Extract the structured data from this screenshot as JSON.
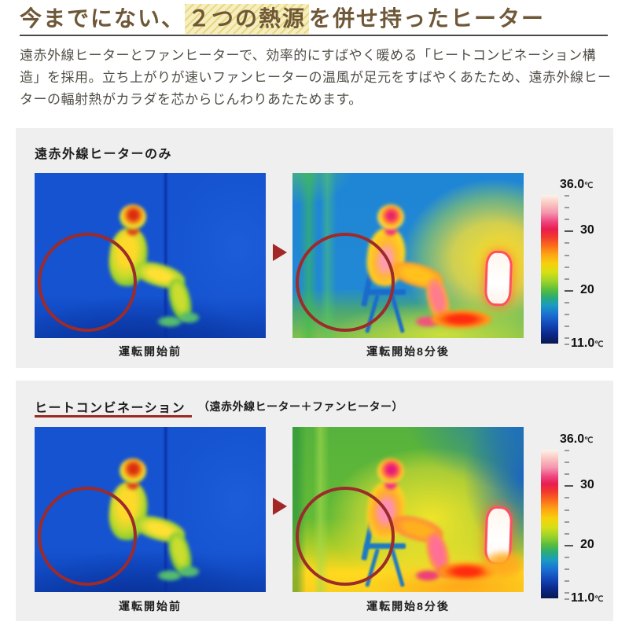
{
  "header": {
    "title_pre": "今までにない、",
    "title_highlight": "２つの熱源",
    "title_post": "を併せ持ったヒーター",
    "intro": "遠赤外線ヒーターとファンヒーターで、効率的にすばやく暖める「ヒートコンビネーション構造」を採用。立ち上がりが速いファンヒーターの温風が足元をすばやくあたため、遠赤外線ヒーターの輻射熱がカラダを芯からじんわりあたためます。"
  },
  "section_infrared_only": {
    "title": "遠赤外線ヒーターのみ",
    "before_caption": "運転開始前",
    "after_caption": "運転開始8分後"
  },
  "section_combination": {
    "title_main": "ヒートコンビネーション",
    "title_sub": "（遠赤外線ヒーター＋ファンヒーター）",
    "before_caption": "運転開始前",
    "after_caption": "運転開始8分後"
  },
  "temperature_scale": {
    "top_value": "36.0",
    "mid_high": "30",
    "mid_low": "20",
    "bottom_value": "11.0",
    "unit": "℃",
    "max_c": 36.0,
    "min_c": 11.0
  },
  "colors": {
    "title_text": "#6e5837",
    "highlight_bg": "#f5eec0",
    "accent_red": "#9c2a22",
    "circle_red": "#9c2b2b",
    "panel_bg": "#efefef"
  }
}
